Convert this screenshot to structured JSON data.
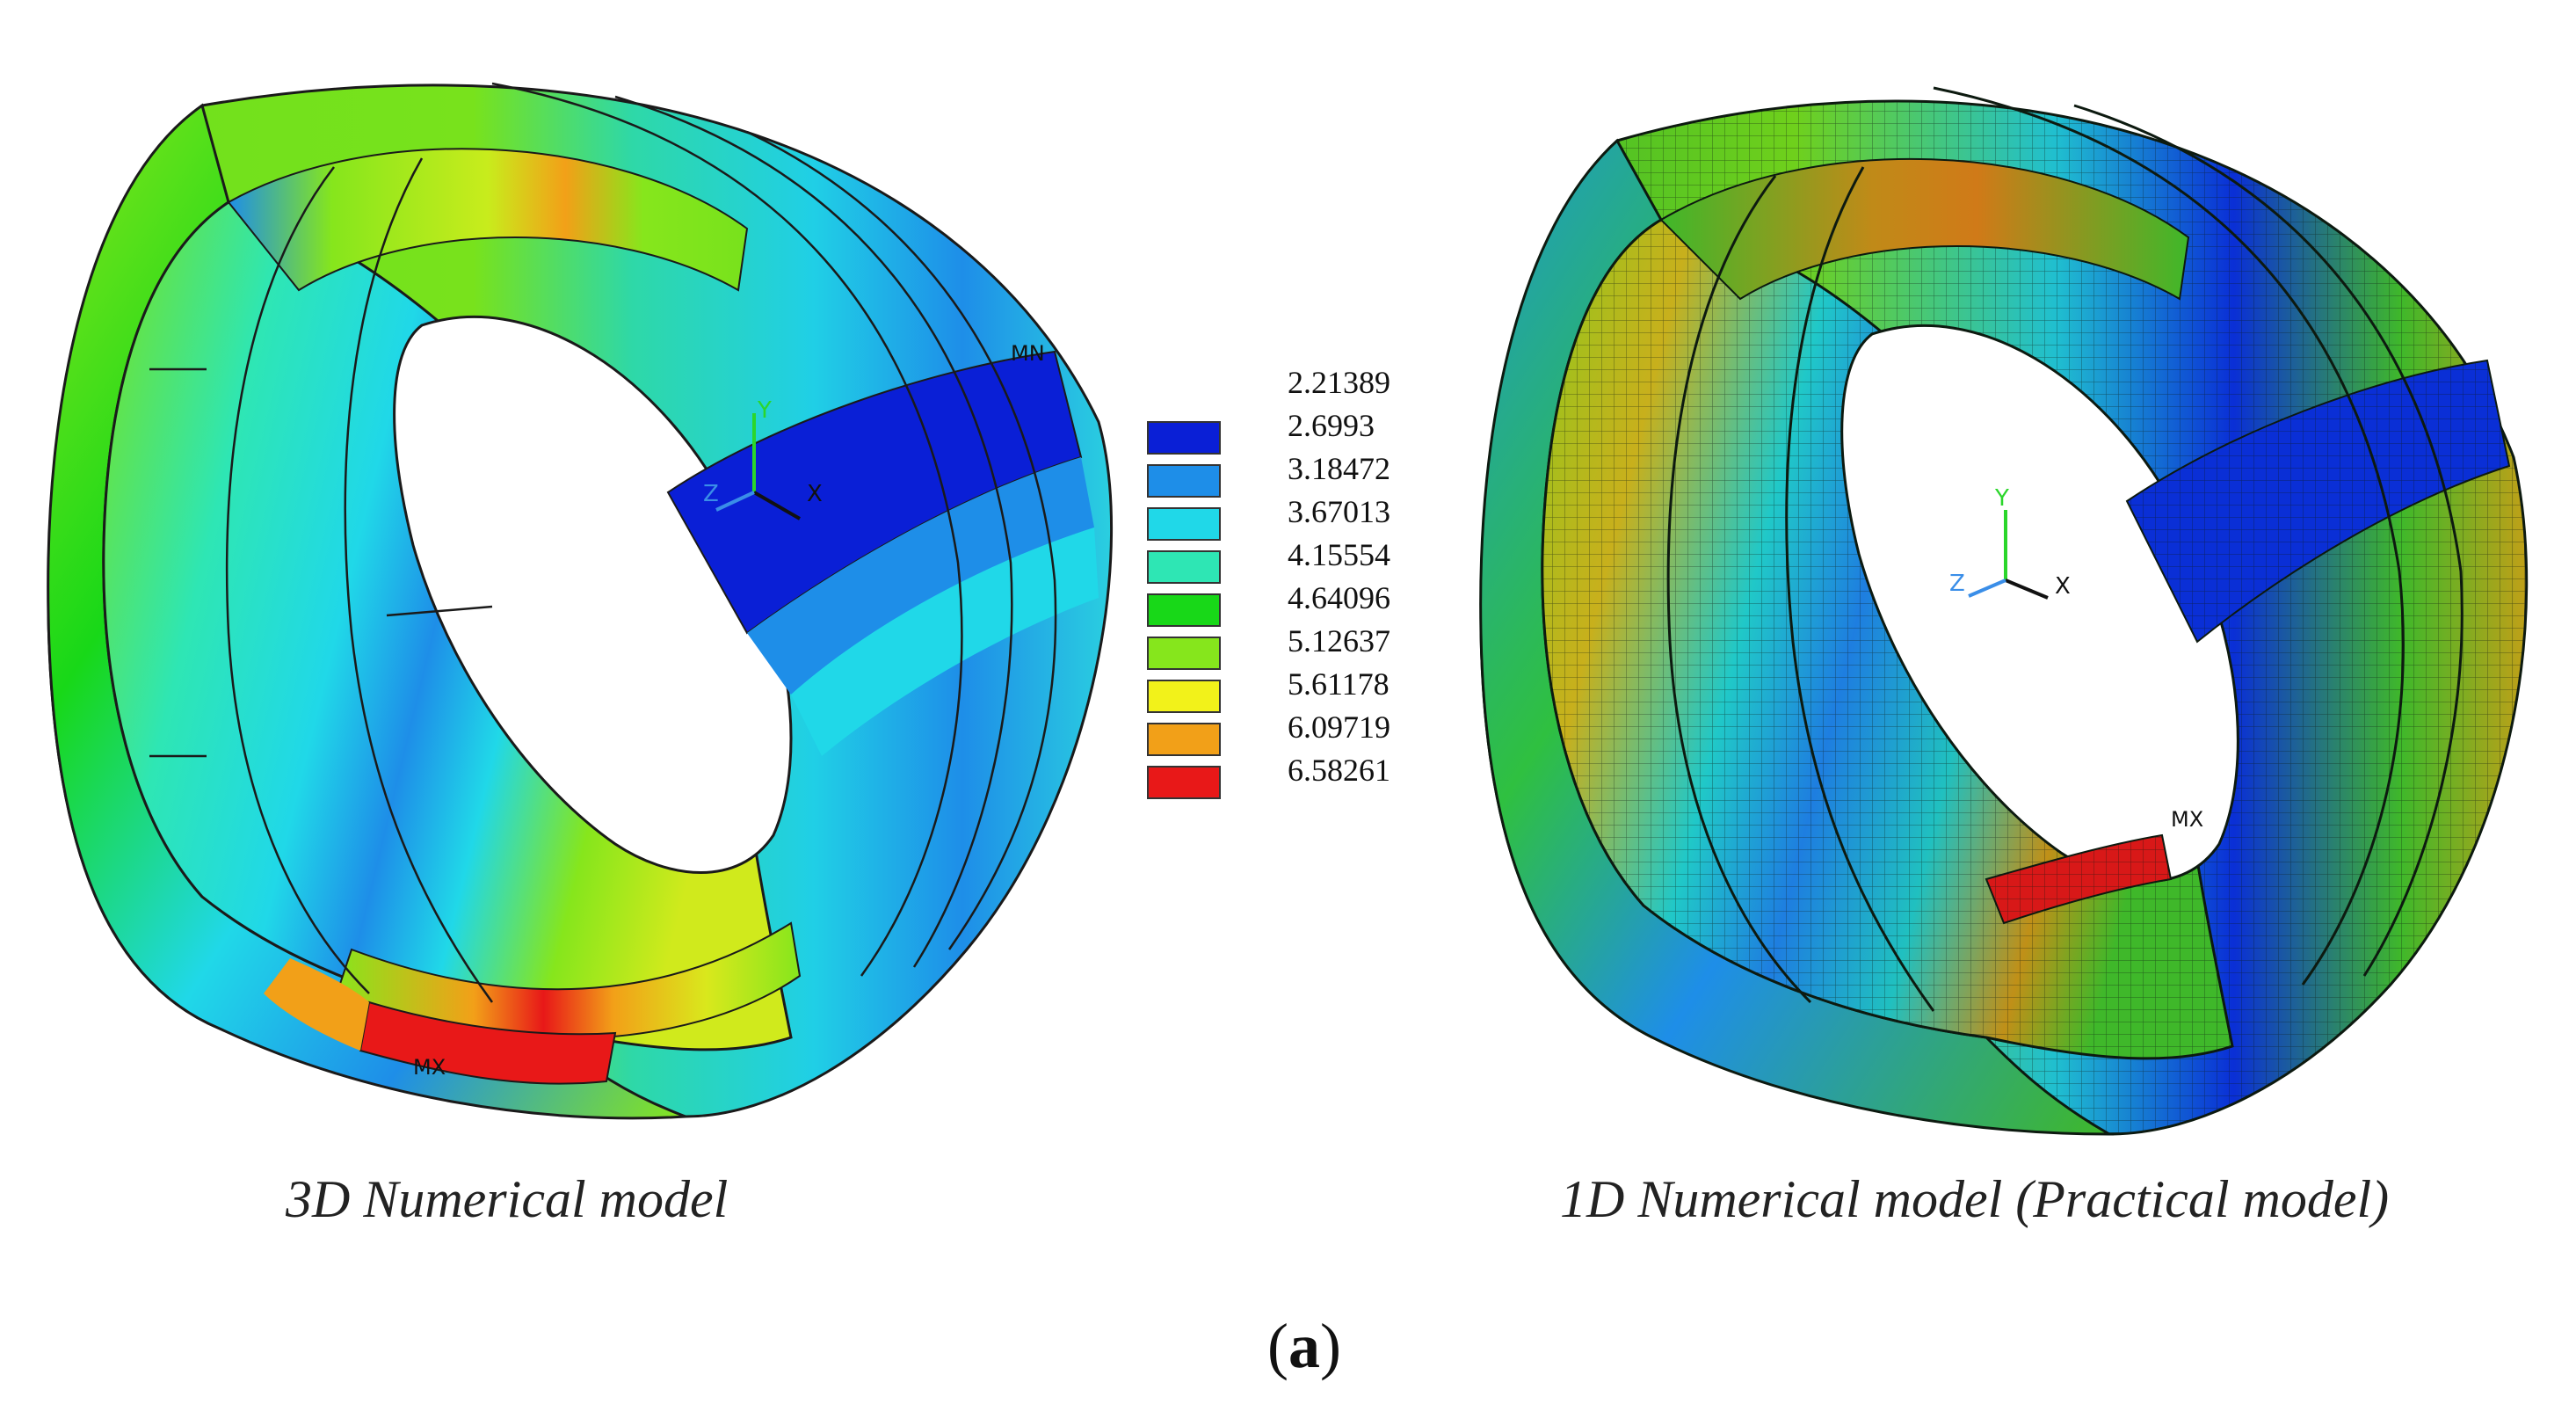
{
  "figure": {
    "left_caption": "3D Numerical model",
    "right_caption": "1D Numerical model (Practical model)",
    "panel_label_open": "(",
    "panel_label_letter": "a",
    "panel_label_close": ")"
  },
  "legend": {
    "values": [
      "2.21389",
      "2.6993",
      "3.18472",
      "3.67013",
      "4.15554",
      "4.64096",
      "5.12637",
      "5.61178",
      "6.09719",
      "6.58261"
    ],
    "colors": [
      "#0a1fd6",
      "#1e8ee8",
      "#20d8e8",
      "#2ee6b4",
      "#18d818",
      "#86e61c",
      "#f2f21a",
      "#f2a018",
      "#e81818"
    ]
  },
  "left_model": {
    "max_label": "MX",
    "min_label": "MN",
    "axis_x": "X",
    "axis_y": "Y",
    "axis_z": "Z"
  },
  "right_model": {
    "max_label": "MX",
    "axis_x": "X",
    "axis_y": "Y",
    "axis_z": "Z"
  },
  "colors": {
    "outline": "#1a1a1a",
    "axis_x": "#111111",
    "axis_y": "#2bd62b",
    "axis_z": "#3a8ee8"
  }
}
